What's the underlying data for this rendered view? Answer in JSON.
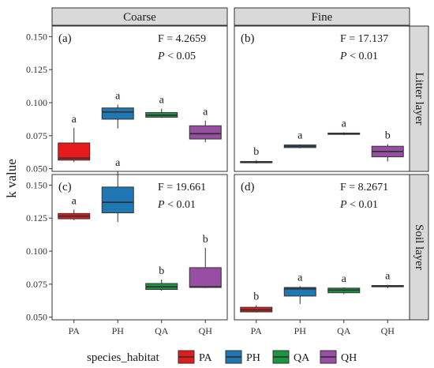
{
  "chart_data": {
    "type": "box",
    "y_axis_title": "k value",
    "column_strips": [
      "Coarse",
      "Fine"
    ],
    "row_strips": [
      "Litter layer",
      "Soil layer"
    ],
    "categories": [
      "PA",
      "PH",
      "QA",
      "QH"
    ],
    "y_ticks": [
      "0.050",
      "0.075",
      "0.100",
      "0.125",
      "0.150"
    ],
    "y_tick_values": [
      0.05,
      0.075,
      0.1,
      0.125,
      0.15
    ],
    "ylim": [
      0.048,
      0.158
    ],
    "colors": {
      "PA": "#e41a1c",
      "PH": "#1f78b4",
      "QA": "#1a9641",
      "QH": "#984ea3"
    },
    "legend": {
      "title": "species_habitat",
      "position": "bottom",
      "entries": [
        "PA",
        "PH",
        "QA",
        "QH"
      ]
    },
    "panels": [
      {
        "tag": "(a)",
        "column": 0,
        "row": 0,
        "f_text": "F = 4.2659",
        "p_italic": "P",
        "p_text": " < 0.05",
        "boxes": [
          {
            "category": "PA",
            "min": 0.055,
            "q1": 0.0565,
            "median": 0.058,
            "q3": 0.0695,
            "max": 0.081,
            "letter": "a"
          },
          {
            "category": "PH",
            "min": 0.0805,
            "q1": 0.0875,
            "median": 0.093,
            "q3": 0.096,
            "max": 0.0985,
            "letter": "a"
          },
          {
            "category": "QA",
            "min": 0.0885,
            "q1": 0.089,
            "median": 0.0905,
            "q3": 0.0925,
            "max": 0.0955,
            "letter": "a"
          },
          {
            "category": "QH",
            "min": 0.07,
            "q1": 0.0725,
            "median": 0.0765,
            "q3": 0.0825,
            "max": 0.0865,
            "letter": "a"
          }
        ]
      },
      {
        "tag": "(b)",
        "column": 1,
        "row": 0,
        "f_text": "F = 17.137",
        "p_italic": "P",
        "p_text": " < 0.01",
        "boxes": [
          {
            "category": "PA",
            "min": 0.054,
            "q1": 0.0545,
            "median": 0.055,
            "q3": 0.0555,
            "max": 0.0565,
            "letter": "b"
          },
          {
            "category": "PH",
            "min": 0.0655,
            "q1": 0.066,
            "median": 0.067,
            "q3": 0.068,
            "max": 0.0685,
            "letter": "a"
          },
          {
            "category": "QA",
            "min": 0.0755,
            "q1": 0.076,
            "median": 0.0765,
            "q3": 0.077,
            "max": 0.0775,
            "letter": "a"
          },
          {
            "category": "QH",
            "min": 0.0555,
            "q1": 0.059,
            "median": 0.063,
            "q3": 0.067,
            "max": 0.0685,
            "letter": "b"
          }
        ]
      },
      {
        "tag": "(c)",
        "column": 0,
        "row": 1,
        "f_text": "F = 19.661",
        "p_italic": "P",
        "p_text": " < 0.01",
        "boxes": [
          {
            "category": "PA",
            "min": 0.1235,
            "q1": 0.1245,
            "median": 0.1265,
            "q3": 0.1285,
            "max": 0.1315,
            "letter": "a"
          },
          {
            "category": "PH",
            "min": 0.122,
            "q1": 0.129,
            "median": 0.137,
            "q3": 0.1485,
            "max": 0.1605,
            "letter": "a"
          },
          {
            "category": "QA",
            "min": 0.07,
            "q1": 0.071,
            "median": 0.073,
            "q3": 0.0755,
            "max": 0.0785,
            "letter": "b"
          },
          {
            "category": "QH",
            "min": 0.072,
            "q1": 0.0725,
            "median": 0.073,
            "q3": 0.0875,
            "max": 0.1025,
            "letter": "b"
          }
        ]
      },
      {
        "tag": "(d)",
        "column": 1,
        "row": 1,
        "f_text": "F = 8.2671",
        "p_italic": "P",
        "p_text": " < 0.01",
        "boxes": [
          {
            "category": "PA",
            "min": 0.0535,
            "q1": 0.054,
            "median": 0.0555,
            "q3": 0.0575,
            "max": 0.059,
            "letter": "b"
          },
          {
            "category": "PH",
            "min": 0.06,
            "q1": 0.066,
            "median": 0.0715,
            "q3": 0.0725,
            "max": 0.0735,
            "letter": "a"
          },
          {
            "category": "QA",
            "min": 0.0675,
            "q1": 0.0685,
            "median": 0.0705,
            "q3": 0.072,
            "max": 0.0725,
            "letter": "a"
          },
          {
            "category": "QH",
            "min": 0.072,
            "q1": 0.073,
            "median": 0.0735,
            "q3": 0.074,
            "max": 0.0745,
            "letter": "a"
          }
        ]
      }
    ]
  }
}
